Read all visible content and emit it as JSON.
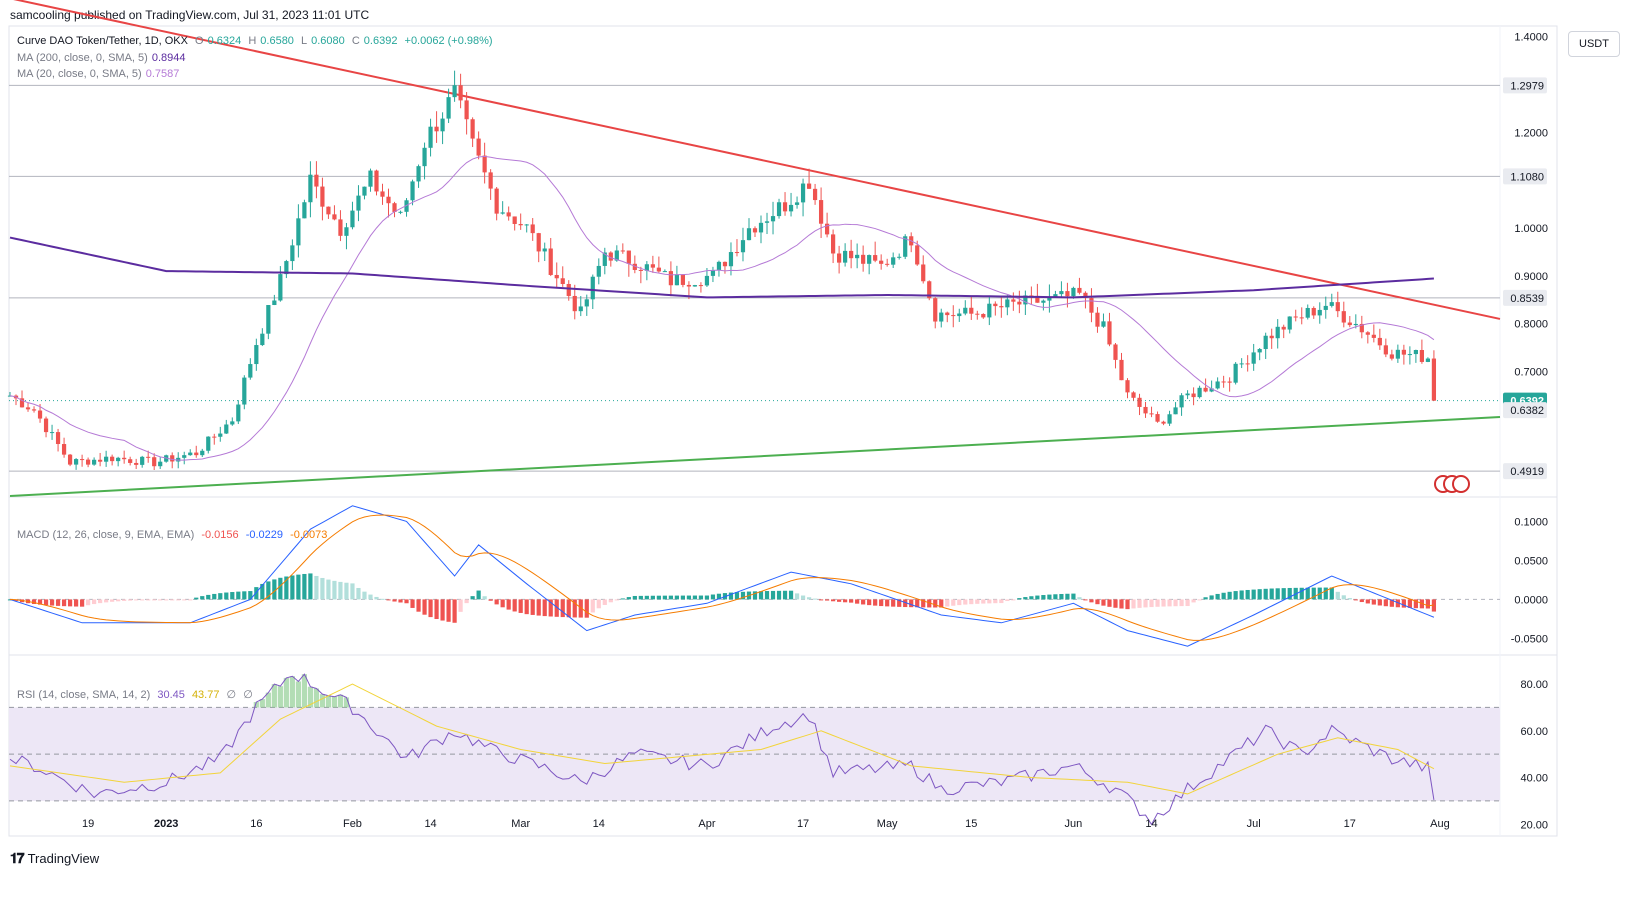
{
  "header": {
    "publisher_line": "samcooling published on TradingView.com, Jul 31, 2023 11:01 UTC"
  },
  "currency_button": "USDT",
  "footer": {
    "brand": "TradingView"
  },
  "legend_main": {
    "symbol": "Curve DAO Token/Tether, 1D, OKX",
    "o_label": "O",
    "o": "0.6324",
    "h_label": "H",
    "h": "0.6580",
    "l_label": "L",
    "l": "0.6080",
    "c_label": "C",
    "c": "0.6392",
    "change": "+0.0062 (+0.98%)",
    "ma200_label": "MA (200, close, 0, SMA, 5)",
    "ma200_value": "0.8944",
    "ma20_label": "MA (20, close, 0, SMA, 5)",
    "ma20_value": "0.7587"
  },
  "legend_macd": {
    "label": "MACD (12, 26, close, 9, EMA, EMA)",
    "hist": "-0.0156",
    "macd": "-0.0229",
    "signal": "-0.0073"
  },
  "legend_rsi": {
    "label": "RSI (14, close, SMA, 14, 2)",
    "rsi": "30.45",
    "ma": "43.77",
    "extra1": "∅",
    "extra2": "∅"
  },
  "colors": {
    "up": "#26a69a",
    "down": "#ef5350",
    "ma200": "#5b2c9f",
    "ma20": "#b57ad6",
    "resistance": "#e84545",
    "support": "#4caf50",
    "macd": "#2962ff",
    "signal": "#f57c00",
    "rsi": "#7e57c2",
    "rsi_ma": "#f2d43a",
    "rsi_band": "#ede7f6"
  },
  "chart_data": [
    {
      "type": "candlestick",
      "title": "Curve DAO Token/Tether, 1D, OKX",
      "x_tick_labels": [
        "19",
        "2023",
        "16",
        "Feb",
        "14",
        "Mar",
        "14",
        "Apr",
        "17",
        "May",
        "15",
        "Jun",
        "14",
        "Jul",
        "17",
        "Aug"
      ],
      "y_tick_labels": [
        "1.4000",
        "1.2000",
        "1.0000",
        "0.9000",
        "0.8000",
        "0.7000"
      ],
      "ylim": [
        0.44,
        1.42
      ],
      "price_levels": [
        {
          "label": "1.2979",
          "value": 1.2979,
          "style": "level"
        },
        {
          "label": "1.1080",
          "value": 1.108,
          "style": "level"
        },
        {
          "label": "0.8539",
          "value": 0.8539,
          "style": "level"
        },
        {
          "label": "0.6392",
          "value": 0.6392,
          "style": "current"
        },
        {
          "label": "0.6382",
          "value": 0.6382,
          "style": "plain"
        },
        {
          "label": "0.4919",
          "value": 0.4919,
          "style": "level"
        }
      ],
      "trendlines": [
        {
          "name": "resistance",
          "from": [
            "Dec 6",
            1.48
          ],
          "to": [
            "Aug 11",
            0.81
          ]
        },
        {
          "name": "support",
          "from": [
            "Dec 6",
            0.44
          ],
          "to": [
            "Aug 11",
            0.605
          ]
        }
      ],
      "close_series_anchors": [
        [
          "Dec 6",
          0.65
        ],
        [
          "Dec 10",
          0.62
        ],
        [
          "Dec 16",
          0.51
        ],
        [
          "Dec 23",
          0.52
        ],
        [
          "Dec 30",
          0.51
        ],
        [
          "Jan 6",
          0.53
        ],
        [
          "Jan 12",
          0.6
        ],
        [
          "Jan 16",
          0.76
        ],
        [
          "Jan 20",
          0.89
        ],
        [
          "Jan 25",
          1.1
        ],
        [
          "Jan 30",
          1.0
        ],
        [
          "Feb 4",
          1.1
        ],
        [
          "Feb 9",
          1.02
        ],
        [
          "Feb 13",
          1.18
        ],
        [
          "Feb 18",
          1.28
        ],
        [
          "Feb 21",
          1.17
        ],
        [
          "Feb 25",
          1.05
        ],
        [
          "Mar 2",
          1.0
        ],
        [
          "Mar 7",
          0.9
        ],
        [
          "Mar 11",
          0.82
        ],
        [
          "Mar 15",
          0.95
        ],
        [
          "Mar 20",
          0.93
        ],
        [
          "Mar 26",
          0.89
        ],
        [
          "Apr 2",
          0.9
        ],
        [
          "Apr 8",
          1.0
        ],
        [
          "Apr 14",
          1.05
        ],
        [
          "Apr 18",
          1.1
        ],
        [
          "Apr 22",
          0.95
        ],
        [
          "Apr 30",
          0.92
        ],
        [
          "May 5",
          0.98
        ],
        [
          "May 9",
          0.82
        ],
        [
          "May 15",
          0.82
        ],
        [
          "May 22",
          0.84
        ],
        [
          "May 28",
          0.85
        ],
        [
          "Jun 2",
          0.86
        ],
        [
          "Jun 6",
          0.79
        ],
        [
          "Jun 10",
          0.65
        ],
        [
          "Jun 15",
          0.59
        ],
        [
          "Jun 20",
          0.65
        ],
        [
          "Jun 27",
          0.69
        ],
        [
          "Jul 3",
          0.77
        ],
        [
          "Jul 8",
          0.81
        ],
        [
          "Jul 13",
          0.84
        ],
        [
          "Jul 18",
          0.8
        ],
        [
          "Jul 24",
          0.74
        ],
        [
          "Jul 30",
          0.73
        ],
        [
          "Jul 31",
          0.6392
        ]
      ],
      "ma200_anchors": [
        [
          "Dec 6",
          0.98
        ],
        [
          "Jan 1",
          0.91
        ],
        [
          "Feb 1",
          0.905
        ],
        [
          "Mar 1",
          0.88
        ],
        [
          "Apr 1",
          0.855
        ],
        [
          "May 1",
          0.86
        ],
        [
          "Jun 1",
          0.855
        ],
        [
          "Jul 1",
          0.87
        ],
        [
          "Jul 31",
          0.8944
        ]
      ]
    },
    {
      "type": "macd",
      "title": "MACD (12, 26, close, 9, EMA, EMA)",
      "y_tick_labels": [
        "0.1000",
        "0.0500",
        "0.0000",
        "-0.0500"
      ],
      "ylim": [
        -0.07,
        0.13
      ],
      "macd_anchors": [
        [
          "Dec 6",
          0.0
        ],
        [
          "Dec 18",
          -0.03
        ],
        [
          "Jan 5",
          -0.03
        ],
        [
          "Jan 15",
          0.0
        ],
        [
          "Jan 25",
          0.09
        ],
        [
          "Feb 1",
          0.12
        ],
        [
          "Feb 10",
          0.1
        ],
        [
          "Feb 18",
          0.03
        ],
        [
          "Feb 22",
          0.07
        ],
        [
          "Mar 2",
          0.02
        ],
        [
          "Mar 12",
          -0.04
        ],
        [
          "Mar 20",
          -0.02
        ],
        [
          "Apr 1",
          -0.005
        ],
        [
          "Apr 15",
          0.035
        ],
        [
          "Apr 25",
          0.02
        ],
        [
          "May 10",
          -0.02
        ],
        [
          "May 20",
          -0.03
        ],
        [
          "Jun 1",
          -0.005
        ],
        [
          "Jun 10",
          -0.04
        ],
        [
          "Jun 20",
          -0.06
        ],
        [
          "Jul 1",
          -0.02
        ],
        [
          "Jul 14",
          0.03
        ],
        [
          "Jul 31",
          -0.0229
        ]
      ]
    },
    {
      "type": "rsi",
      "title": "RSI (14, close, SMA, 14, 2)",
      "y_tick_labels": [
        "80.00",
        "60.00",
        "40.00",
        "20.00"
      ],
      "ylim": [
        15,
        92
      ],
      "bands": [
        70,
        50,
        30
      ],
      "rsi_anchors": [
        [
          "Dec 6",
          48
        ],
        [
          "Dec 10",
          45
        ],
        [
          "Dec 20",
          33
        ],
        [
          "Jan 1",
          38
        ],
        [
          "Jan 10",
          48
        ],
        [
          "Jan 16",
          70
        ],
        [
          "Jan 22",
          85
        ],
        [
          "Feb 1",
          70
        ],
        [
          "Feb 10",
          48
        ],
        [
          "Feb 18",
          60
        ],
        [
          "Feb 24",
          52
        ],
        [
          "Mar 5",
          44
        ],
        [
          "Mar 11",
          38
        ],
        [
          "Mar 20",
          50
        ],
        [
          "Apr 1",
          45
        ],
        [
          "Apr 12",
          62
        ],
        [
          "Apr 18",
          67
        ],
        [
          "Apr 22",
          42
        ],
        [
          "May 5",
          45
        ],
        [
          "May 10",
          35
        ],
        [
          "May 20",
          38
        ],
        [
          "Jun 1",
          45
        ],
        [
          "Jun 8",
          35
        ],
        [
          "Jun 14",
          22
        ],
        [
          "Jun 20",
          35
        ],
        [
          "Jul 3",
          60
        ],
        [
          "Jul 9",
          50
        ],
        [
          "Jul 14",
          60
        ],
        [
          "Jul 24",
          48
        ],
        [
          "Jul 30",
          44
        ],
        [
          "Jul 31",
          30.45
        ]
      ],
      "rsi_ma_anchors": [
        [
          "Dec 6",
          45
        ],
        [
          "Dec 25",
          38
        ],
        [
          "Jan 10",
          42
        ],
        [
          "Jan 20",
          65
        ],
        [
          "Feb 1",
          80
        ],
        [
          "Feb 15",
          62
        ],
        [
          "Mar 1",
          52
        ],
        [
          "Mar 15",
          46
        ],
        [
          "Apr 10",
          52
        ],
        [
          "Apr 20",
          60
        ],
        [
          "May 5",
          45
        ],
        [
          "May 25",
          40
        ],
        [
          "Jun 10",
          38
        ],
        [
          "Jun 20",
          33
        ],
        [
          "Jul 5",
          50
        ],
        [
          "Jul 15",
          57
        ],
        [
          "Jul 25",
          52
        ],
        [
          "Jul 31",
          43.77
        ]
      ]
    }
  ]
}
